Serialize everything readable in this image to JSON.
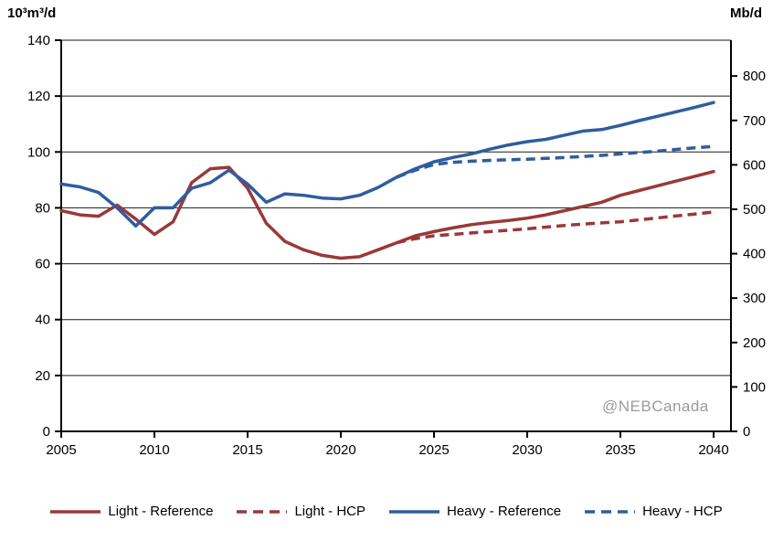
{
  "chart_data": {
    "type": "line",
    "title": "",
    "watermark": "@NEBCanada",
    "grid": "horizontal",
    "legend_position": "bottom",
    "x": {
      "start": 2005,
      "end": 2040,
      "ticks": [
        2005,
        2010,
        2015,
        2020,
        2025,
        2030,
        2035,
        2040
      ]
    },
    "left_axis": {
      "title": "10³m³/d",
      "min": 0,
      "max": 140,
      "ticks": [
        0,
        20,
        40,
        60,
        80,
        100,
        120,
        140
      ]
    },
    "right_axis": {
      "title": "Mb/d",
      "min": 0,
      "max": 800,
      "ticks": [
        0,
        100,
        200,
        300,
        400,
        500,
        600,
        700,
        800
      ],
      "scale_max": 880.6
    },
    "series": [
      {
        "id": "light-reference",
        "label": "Light - Reference",
        "color": "#9a3838",
        "dashed": false,
        "values": [
          79,
          77.5,
          77,
          81,
          76,
          70.5,
          75,
          89,
          94,
          94.5,
          87,
          74.5,
          68,
          65,
          63,
          62,
          62.5,
          65,
          67.5,
          70,
          71.5,
          72.8,
          74,
          74.8,
          75.5,
          76.3,
          77.5,
          79,
          80.5,
          82,
          84.5,
          86.2,
          87.9,
          89.6,
          91.3,
          93
        ]
      },
      {
        "id": "light-hcp",
        "label": "Light - HCP",
        "color": "#9a3838",
        "dashed": true,
        "values": [
          null,
          null,
          null,
          null,
          null,
          null,
          null,
          null,
          null,
          null,
          null,
          null,
          null,
          null,
          null,
          null,
          null,
          null,
          67.5,
          69,
          70,
          70.5,
          71,
          71.5,
          72,
          72.5,
          73.1,
          73.7,
          74.2,
          74.6,
          75,
          75.7,
          76.4,
          77.1,
          77.8,
          78.5
        ]
      },
      {
        "id": "heavy-reference",
        "label": "Heavy - Reference",
        "color": "#2f5d9e",
        "dashed": false,
        "values": [
          88.5,
          87.5,
          85.5,
          80,
          73.5,
          80,
          80,
          87,
          89,
          93.5,
          88.5,
          82,
          85,
          84.5,
          83.5,
          83.2,
          84.5,
          87.3,
          91,
          94,
          96.5,
          98,
          99.3,
          101,
          102.5,
          103.7,
          104.5,
          106,
          107.5,
          108,
          109.5,
          111.2,
          112.8,
          114.4,
          116,
          117.7
        ]
      },
      {
        "id": "heavy-hcp",
        "label": "Heavy - HCP",
        "color": "#2f5d9e",
        "dashed": true,
        "values": [
          null,
          null,
          null,
          null,
          null,
          null,
          null,
          null,
          null,
          null,
          null,
          null,
          null,
          null,
          null,
          null,
          null,
          null,
          91,
          93.5,
          95.5,
          96.3,
          96.7,
          97,
          97.2,
          97.4,
          97.7,
          98,
          98.4,
          98.8,
          99.3,
          99.8,
          100.3,
          100.9,
          101.5,
          102
        ]
      }
    ]
  }
}
